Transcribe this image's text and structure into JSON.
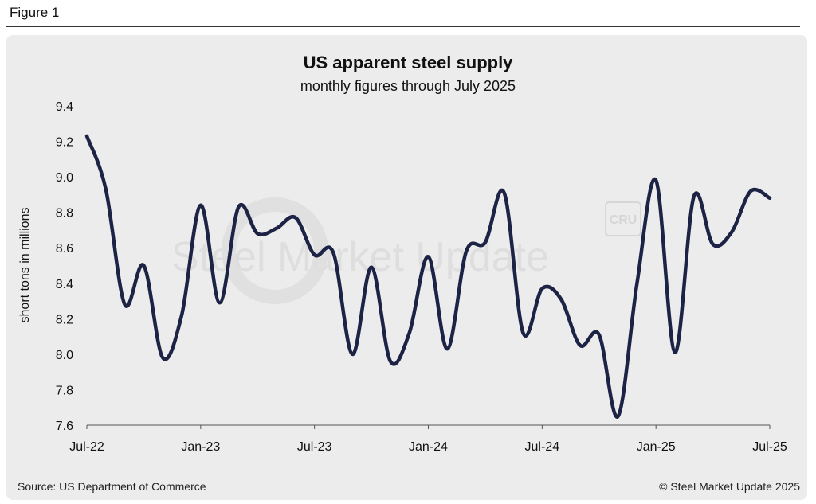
{
  "figure_label": "Figure 1",
  "source": "Source: US Department of Commerce",
  "copyright": "© Steel Market Update 2025",
  "watermark": {
    "brand_text": "Steel Market Update",
    "badge_text": "CRU"
  },
  "colors": {
    "line": "#1c2344",
    "panel": "#ececec"
  },
  "chart_data": {
    "type": "line",
    "title": "US apparent steel supply",
    "subtitle": "monthly figures through July 2025",
    "xlabel": "",
    "ylabel": "short tons in millions",
    "ylim": [
      7.6,
      9.4
    ],
    "yticks": [
      7.6,
      7.8,
      8.0,
      8.2,
      8.4,
      8.6,
      8.8,
      9.0,
      9.2,
      9.4
    ],
    "xticks": [
      "Jul-22",
      "Jan-23",
      "Jul-23",
      "Jan-24",
      "Jul-24",
      "Jan-25",
      "Jul-25"
    ],
    "grid": false,
    "categories": [
      "Jul-22",
      "Aug-22",
      "Sep-22",
      "Oct-22",
      "Nov-22",
      "Dec-22",
      "Jan-23",
      "Feb-23",
      "Mar-23",
      "Apr-23",
      "May-23",
      "Jun-23",
      "Jul-23",
      "Aug-23",
      "Sep-23",
      "Oct-23",
      "Nov-23",
      "Dec-23",
      "Jan-24",
      "Feb-24",
      "Mar-24",
      "Apr-24",
      "May-24",
      "Jun-24",
      "Jul-24",
      "Aug-24",
      "Sep-24",
      "Oct-24",
      "Nov-24",
      "Dec-24",
      "Jan-25",
      "Feb-25",
      "Mar-25",
      "Apr-25",
      "May-25",
      "Jun-25",
      "Jul-25"
    ],
    "series": [
      {
        "values": [
          9.23,
          8.93,
          8.28,
          8.5,
          7.98,
          8.22,
          8.84,
          8.29,
          8.83,
          8.68,
          8.71,
          8.77,
          8.56,
          8.57,
          8.0,
          8.49,
          7.96,
          8.12,
          8.55,
          8.03,
          8.58,
          8.63,
          8.91,
          8.12,
          8.37,
          8.31,
          8.05,
          8.11,
          7.65,
          8.4,
          8.98,
          8.01,
          8.89,
          8.62,
          8.69,
          8.92,
          8.88
        ]
      }
    ]
  }
}
